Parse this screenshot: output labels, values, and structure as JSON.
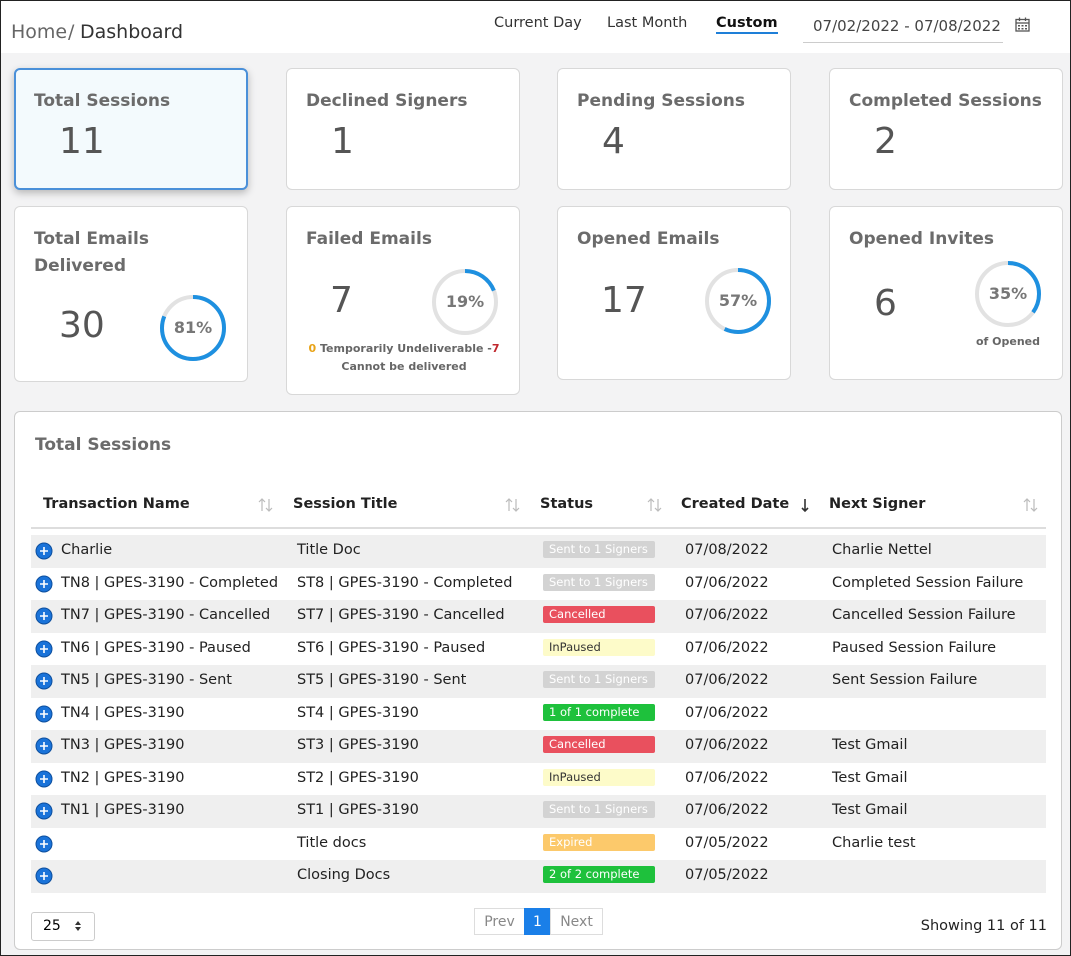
{
  "header": {
    "breadcrumb_home": "Home",
    "breadcrumb_separator": "/",
    "breadcrumb_page": "Dashboard",
    "tabs": [
      "Current Day",
      "Last Month",
      "Custom"
    ],
    "active_tab": 2,
    "date_range": "07/02/2022 - 07/08/2022"
  },
  "session_cards": [
    {
      "title": "Total Sessions",
      "value": 11
    },
    {
      "title": "Declined Signers",
      "value": 1
    },
    {
      "title": "Pending Sessions",
      "value": 4
    },
    {
      "title": "Completed Sessions",
      "value": 2
    }
  ],
  "email_cards": [
    {
      "title": "Total Emails Delivered",
      "value": 30,
      "percent": 81,
      "percent_label": "81%"
    },
    {
      "title": "Failed Emails",
      "value": 7,
      "percent": 19,
      "percent_label": "19%",
      "note": {
        "temporary_count": 0,
        "temporary_text": "Temporarily Undeliverable -",
        "failed_count": 7,
        "failed_text": "Cannot be delivered"
      }
    },
    {
      "title": "Opened Emails",
      "value": 17,
      "percent": 57,
      "percent_label": "57%"
    },
    {
      "title": "Opened Invites",
      "value": 6,
      "percent": 35,
      "percent_label": "35%",
      "caption": "of Opened"
    }
  ],
  "table": {
    "title": "Total Sessions",
    "columns": [
      "Transaction Name",
      "Session Title",
      "Status",
      "Created Date",
      "Next Signer"
    ],
    "sorted_column": 3,
    "rows": [
      [
        "Charlie",
        "Title Doc",
        "Sent to 1 Signers",
        "07/08/2022",
        "Charlie Nettel"
      ],
      [
        "TN8 | GPES-3190 - Completed",
        "ST8 | GPES-3190 - Completed",
        "Sent to 1 Signers",
        "07/06/2022",
        "Completed Session Failure"
      ],
      [
        "TN7 | GPES-3190 - Cancelled",
        "ST7 | GPES-3190 - Cancelled",
        "Cancelled",
        "07/06/2022",
        "Cancelled Session Failure"
      ],
      [
        "TN6 | GPES-3190 - Paused",
        "ST6 | GPES-3190 - Paused",
        "InPaused",
        "07/06/2022",
        "Paused Session Failure"
      ],
      [
        "TN5 | GPES-3190 - Sent",
        "ST5 | GPES-3190 - Sent",
        "Sent to 1 Signers",
        "07/06/2022",
        "Sent Session Failure"
      ],
      [
        "TN4 | GPES-3190",
        "ST4 | GPES-3190",
        "1 of 1 complete",
        "07/06/2022",
        null
      ],
      [
        "TN3 | GPES-3190",
        "ST3 | GPES-3190",
        "Cancelled",
        "07/06/2022",
        "Test Gmail"
      ],
      [
        "TN2 | GPES-3190",
        "ST2 | GPES-3190",
        "InPaused",
        "07/06/2022",
        "Test Gmail"
      ],
      [
        "TN1 | GPES-3190",
        "ST1 | GPES-3190",
        "Sent to 1 Signers",
        "07/06/2022",
        "Test Gmail"
      ],
      [
        null,
        "Title docs",
        "Expired",
        "07/05/2022",
        "Charlie test"
      ],
      [
        null,
        "Closing Docs",
        "2 of 2 complete",
        "07/05/2022",
        null
      ]
    ],
    "status_colors": [
      {
        "background": "#d3d3d3",
        "text": "#ffffff"
      },
      {
        "background": "#d3d3d3",
        "text": "#ffffff"
      },
      {
        "background": "#e9505e",
        "text": "#ffffff"
      },
      {
        "background": "#fdfbc9",
        "text": "#333333"
      },
      {
        "background": "#d3d3d3",
        "text": "#ffffff"
      },
      {
        "background": "#1ec13c",
        "text": "#ffffff"
      },
      {
        "background": "#e9505e",
        "text": "#ffffff"
      },
      {
        "background": "#fdfbc9",
        "text": "#333333"
      },
      {
        "background": "#d3d3d3",
        "text": "#ffffff"
      },
      {
        "background": "#fcc96b",
        "text": "#ffffff"
      },
      {
        "background": "#1ec13c",
        "text": "#ffffff"
      }
    ]
  },
  "footer": {
    "page_size": "25",
    "prev": "Prev",
    "current_page": "1",
    "next": "Next",
    "summary": "Showing 11 of 11"
  }
}
